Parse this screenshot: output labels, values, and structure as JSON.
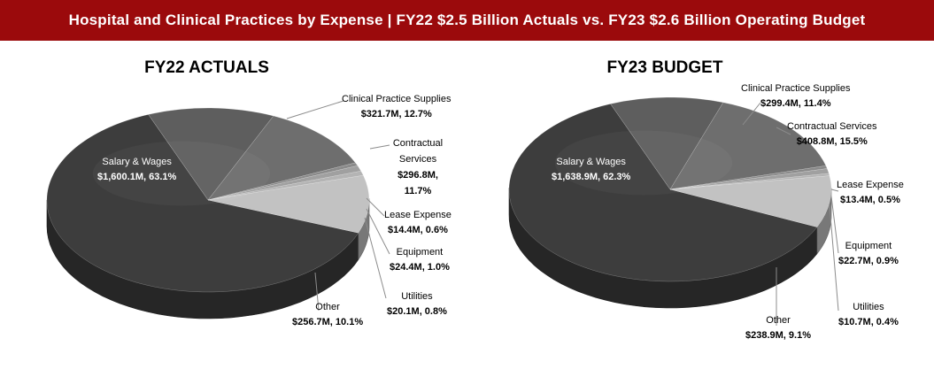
{
  "banner": {
    "title": "Hospital and Clinical Practices by Expense | FY22 $2.5 Billion Actuals vs. FY23 $2.6 Billion Operating Budget"
  },
  "colors": {
    "banner": "#9b0a0c",
    "salary": "#3d3d3d",
    "clinical": "#5e5e5e",
    "contractual": "#6e6e6e",
    "lease": "#8a8a8a",
    "equipment": "#a0a0a0",
    "utilities": "#b4b4b4",
    "other": "#c2c2c2"
  },
  "chart_data": [
    {
      "type": "pie",
      "title": "FY22 ACTUALS",
      "slices": [
        {
          "name": "Salary & Wages",
          "value_label": "$1,600.1M, 63.1%",
          "value": 1600.1,
          "percent": 63.1
        },
        {
          "name": "Clinical Practice Supplies",
          "value_label": "$321.7M, 12.7%",
          "value": 321.7,
          "percent": 12.7
        },
        {
          "name": "Contractual Services",
          "value_label": "$296.8M, 11.7%",
          "value": 296.8,
          "percent": 11.7
        },
        {
          "name": "Lease Expense",
          "value_label": "$14.4M, 0.6%",
          "value": 14.4,
          "percent": 0.6
        },
        {
          "name": "Equipment",
          "value_label": "$24.4M, 1.0%",
          "value": 24.4,
          "percent": 1.0
        },
        {
          "name": "Utilities",
          "value_label": "$20.1M, 0.8%",
          "value": 20.1,
          "percent": 0.8
        },
        {
          "name": "Other",
          "value_label": "$256.7M, 10.1%",
          "value": 256.7,
          "percent": 10.1
        }
      ]
    },
    {
      "type": "pie",
      "title": "FY23 BUDGET",
      "slices": [
        {
          "name": "Salary & Wages",
          "value_label": "$1,638.9M, 62.3%",
          "value": 1638.9,
          "percent": 62.3
        },
        {
          "name": "Clinical Practice Supplies",
          "value_label": "$299.4M, 11.4%",
          "value": 299.4,
          "percent": 11.4
        },
        {
          "name": "Contractual Services",
          "value_label": "$408.8M, 15.5%",
          "value": 408.8,
          "percent": 15.5
        },
        {
          "name": "Lease Expense",
          "value_label": "$13.4M, 0.5%",
          "value": 13.4,
          "percent": 0.5
        },
        {
          "name": "Equipment",
          "value_label": "$22.7M, 0.9%",
          "value": 22.7,
          "percent": 0.9
        },
        {
          "name": "Utilities",
          "value_label": "$10.7M, 0.4%",
          "value": 10.7,
          "percent": 0.4
        },
        {
          "name": "Other",
          "value_label": "$238.9M, 9.1%",
          "value": 238.9,
          "percent": 9.1
        }
      ]
    }
  ]
}
